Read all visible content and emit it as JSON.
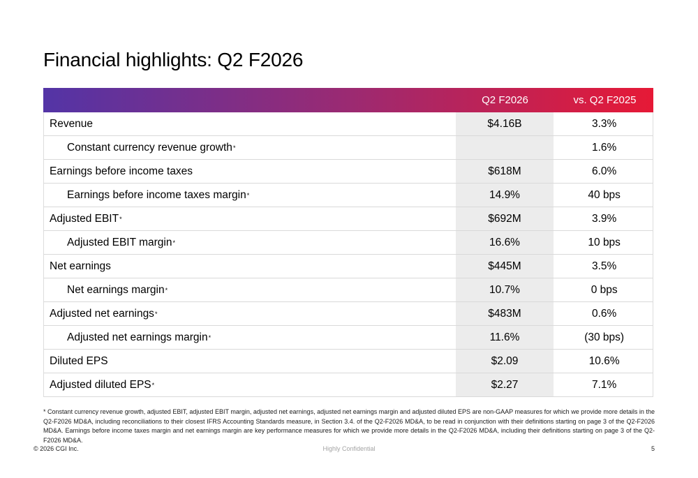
{
  "slide": {
    "title": "Financial highlights: Q2 F2026"
  },
  "table": {
    "header": {
      "metric_col": "",
      "q2_f2026_col": "Q2 F2026",
      "vs_q2_f2025_col": "vs. Q2 F2025",
      "gradient_left_color": "#5334A6",
      "gradient_mid_color": "#9B2A72",
      "gradient_right_color": "#E61936"
    },
    "value_column_bg_color": "#ECECEC",
    "row_divider_color": "#D9D9D9",
    "rows": [
      {
        "label": "Revenue",
        "star": false,
        "indent": false,
        "q2_f2026": "$4.16B",
        "vs_q2_f2025": "3.3%"
      },
      {
        "label": "Constant currency revenue growth",
        "star": true,
        "indent": true,
        "q2_f2026": "",
        "vs_q2_f2025": "1.6%"
      },
      {
        "label": "Earnings before income taxes",
        "star": false,
        "indent": false,
        "q2_f2026": "$618M",
        "vs_q2_f2025": "6.0%"
      },
      {
        "label": "Earnings before income taxes margin",
        "star": true,
        "indent": true,
        "q2_f2026": "14.9%",
        "vs_q2_f2025": "40 bps"
      },
      {
        "label": "Adjusted EBIT",
        "star": true,
        "indent": false,
        "q2_f2026": "$692M",
        "vs_q2_f2025": "3.9%"
      },
      {
        "label": "Adjusted EBIT margin",
        "star": true,
        "indent": true,
        "q2_f2026": "16.6%",
        "vs_q2_f2025": "10 bps"
      },
      {
        "label": "Net earnings",
        "star": false,
        "indent": false,
        "q2_f2026": "$445M",
        "vs_q2_f2025": "3.5%"
      },
      {
        "label": "Net earnings margin",
        "star": true,
        "indent": true,
        "q2_f2026": "10.7%",
        "vs_q2_f2025": "0 bps"
      },
      {
        "label": "Adjusted net earnings",
        "star": true,
        "indent": false,
        "q2_f2026": "$483M",
        "vs_q2_f2025": "0.6%"
      },
      {
        "label": "Adjusted net earnings margin",
        "star": true,
        "indent": true,
        "q2_f2026": "11.6%",
        "vs_q2_f2025": "(30 bps)"
      },
      {
        "label": "Diluted EPS",
        "star": false,
        "indent": false,
        "q2_f2026": "$2.09",
        "vs_q2_f2025": "10.6%"
      },
      {
        "label": "Adjusted diluted EPS",
        "star": true,
        "indent": false,
        "q2_f2026": "$2.27",
        "vs_q2_f2025": "7.1%"
      }
    ]
  },
  "footnote": "* Constant currency revenue growth, adjusted EBIT, adjusted EBIT margin, adjusted net earnings, adjusted net earnings margin and adjusted diluted EPS are non-GAAP measures for which we provide more details in the Q2-F2026 MD&A, including reconciliations to their closest IFRS Accounting Standards measure, in Section 3.4. of the Q2-F2026 MD&A, to be read in conjunction with their definitions starting on page 3 of the Q2-F2026 MD&A. Earnings before income taxes margin and net earnings margin are key performance measures for which we provide more details in the Q2-F2026 MD&A, including their definitions starting on page 3 of the Q2-F2026 MD&A.",
  "footer": {
    "copyright": "© 2026 CGI Inc.",
    "classification": "Highly Confidential",
    "page_number": "5"
  }
}
